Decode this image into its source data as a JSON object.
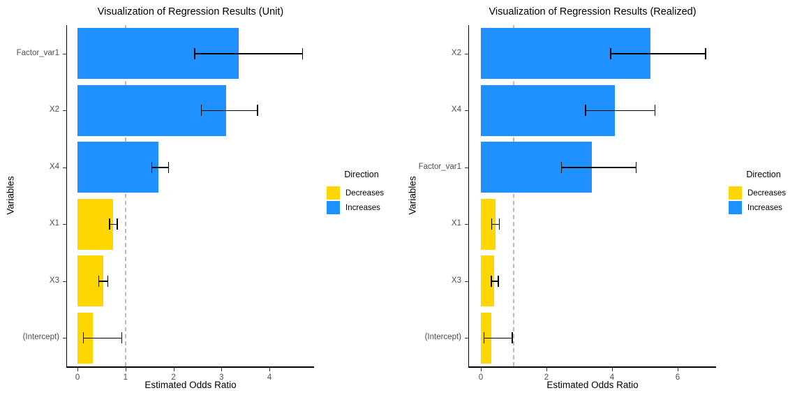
{
  "colors": {
    "increase": "#1E90FF",
    "decrease": "#FFD700",
    "reference_line": "#BBBBBB",
    "axis_text": "#4D4D4D",
    "axis_line": "#000000",
    "error_bar": "#000000",
    "background": "#FFFFFF"
  },
  "legend": {
    "title": "Direction",
    "position": "right",
    "items": [
      {
        "label": "Decreases",
        "color": "#FFD700"
      },
      {
        "label": "Increases",
        "color": "#1E90FF"
      }
    ]
  },
  "chart_data": [
    {
      "type": "bar",
      "orientation": "horizontal",
      "title": "Visualization of Regression Results (Unit)",
      "xlabel": "Estimated Odds Ratio",
      "ylabel": "Variables",
      "grid": false,
      "x_ticks": [
        0,
        1,
        2,
        3,
        4
      ],
      "x_domain": [
        -0.22,
        4.93
      ],
      "reference_line_x": 1,
      "categories": [
        "Factor_var1",
        "X2",
        "X4",
        "X1",
        "X3",
        "(Intercept)"
      ],
      "bars": [
        {
          "label": "Factor_var1",
          "odds_ratio": 3.36,
          "ci_low": 2.44,
          "ci_high": 4.69,
          "direction": "Increases"
        },
        {
          "label": "X2",
          "odds_ratio": 3.1,
          "ci_low": 2.58,
          "ci_high": 3.75,
          "direction": "Increases"
        },
        {
          "label": "X4",
          "odds_ratio": 1.69,
          "ci_low": 1.55,
          "ci_high": 1.9,
          "direction": "Increases"
        },
        {
          "label": "X1",
          "odds_ratio": 0.74,
          "ci_low": 0.67,
          "ci_high": 0.83,
          "direction": "Decreases"
        },
        {
          "label": "X3",
          "odds_ratio": 0.54,
          "ci_low": 0.44,
          "ci_high": 0.63,
          "direction": "Decreases"
        },
        {
          "label": "(Intercept)",
          "odds_ratio": 0.32,
          "ci_low": 0.12,
          "ci_high": 0.92,
          "direction": "Decreases"
        }
      ]
    },
    {
      "type": "bar",
      "orientation": "horizontal",
      "title": "Visualization of Regression Results (Realized)",
      "xlabel": "Estimated Odds Ratio",
      "ylabel": "Variables",
      "grid": false,
      "x_ticks": [
        0,
        2,
        4,
        6
      ],
      "x_domain": [
        -0.36,
        7.17
      ],
      "reference_line_x": 1,
      "categories": [
        "X2",
        "X4",
        "Factor_var1",
        "X1",
        "X3",
        "(Intercept)"
      ],
      "bars": [
        {
          "label": "X2",
          "odds_ratio": 5.16,
          "ci_low": 3.96,
          "ci_high": 6.85,
          "direction": "Increases"
        },
        {
          "label": "X4",
          "odds_ratio": 4.09,
          "ci_low": 3.19,
          "ci_high": 5.31,
          "direction": "Increases"
        },
        {
          "label": "Factor_var1",
          "odds_ratio": 3.38,
          "ci_low": 2.46,
          "ci_high": 4.73,
          "direction": "Increases"
        },
        {
          "label": "X1",
          "odds_ratio": 0.45,
          "ci_low": 0.33,
          "ci_high": 0.56,
          "direction": "Decreases"
        },
        {
          "label": "X3",
          "odds_ratio": 0.41,
          "ci_low": 0.32,
          "ci_high": 0.53,
          "direction": "Decreases"
        },
        {
          "label": "(Intercept)",
          "odds_ratio": 0.32,
          "ci_low": 0.1,
          "ci_high": 0.96,
          "direction": "Decreases"
        }
      ]
    }
  ]
}
